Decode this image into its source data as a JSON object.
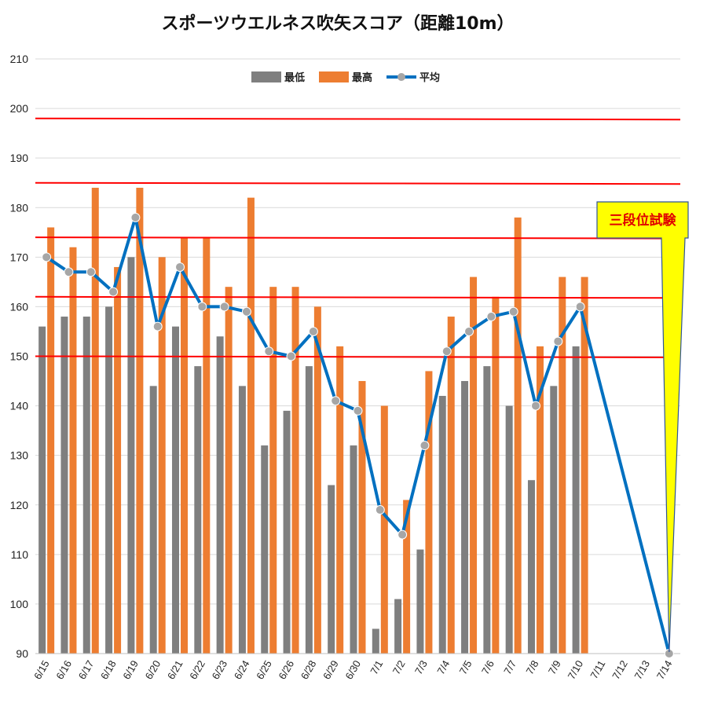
{
  "chart_data": {
    "type": "bar",
    "title": "スポーツウエルネス吹矢スコア（距離10m）",
    "categories": [
      "6/15",
      "6/16",
      "6/17",
      "6/18",
      "6/19",
      "6/20",
      "6/21",
      "6/22",
      "6/23",
      "6/24",
      "6/25",
      "6/26",
      "6/28",
      "6/29",
      "6/30",
      "7/1",
      "7/2",
      "7/3",
      "7/4",
      "7/5",
      "7/6",
      "7/7",
      "7/8",
      "7/9",
      "7/10",
      "7/11",
      "7/12",
      "7/13",
      "7/14"
    ],
    "ylim": [
      90,
      210
    ],
    "yticks": [
      90,
      100,
      110,
      120,
      130,
      140,
      150,
      160,
      170,
      180,
      190,
      200,
      210
    ],
    "grid": true,
    "legend_position": "top",
    "series": [
      {
        "name": "最低",
        "kind": "bar",
        "color": "#7f7f7f",
        "values": [
          156,
          158,
          158,
          160,
          170,
          144,
          156,
          148,
          154,
          144,
          132,
          139,
          148,
          124,
          132,
          95,
          101,
          111,
          142,
          145,
          148,
          140,
          125,
          144,
          152,
          null,
          null,
          null,
          null
        ]
      },
      {
        "name": "最高",
        "kind": "bar",
        "color": "#ed7d31",
        "values": [
          176,
          172,
          184,
          168,
          184,
          170,
          174,
          174,
          164,
          182,
          164,
          164,
          160,
          152,
          145,
          140,
          121,
          147,
          158,
          166,
          162,
          178,
          152,
          166,
          166,
          null,
          null,
          null,
          null
        ]
      },
      {
        "name": "平均",
        "kind": "line",
        "color": "#0070c0",
        "marker_color": "#a6a6a6",
        "values": [
          170,
          167,
          167,
          163,
          178,
          156,
          168,
          160,
          160,
          159,
          151,
          150,
          155,
          141,
          139,
          119,
          114,
          132,
          151,
          155,
          158,
          159,
          140,
          153,
          160,
          null,
          null,
          null,
          90
        ]
      }
    ],
    "reference_lines": [
      198,
      185,
      174,
      162,
      150
    ],
    "reference_line_color": "#ff0000",
    "annotation": {
      "text": "三段位試験",
      "target_category": "7/14",
      "box_color": "#ffff00",
      "text_color": "#e00000"
    }
  }
}
